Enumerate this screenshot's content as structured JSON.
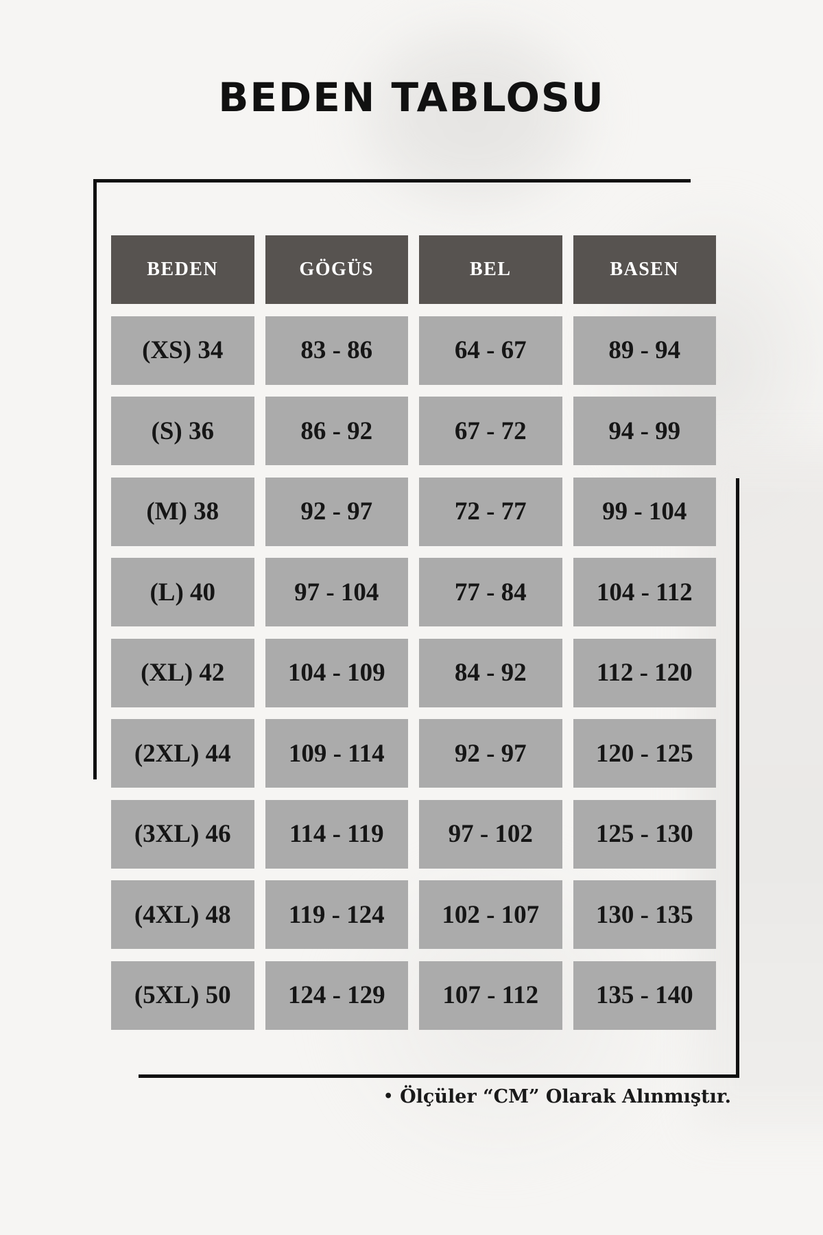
{
  "page": {
    "title": "BEDEN TABLOSU",
    "footnote_bullet": "•",
    "footnote": "Ölçüler “CM” Olarak Alınmıştır."
  },
  "colors": {
    "background": "#f6f5f3",
    "header_cell": "#575350",
    "header_text": "#ffffff",
    "data_cell": "#ababab",
    "data_text": "#161616",
    "frame_line": "#101010",
    "title_text": "#111111"
  },
  "chart_data": {
    "type": "table",
    "title": "BEDEN TABLOSU",
    "units": "cm",
    "columns": [
      "BEDEN",
      "GÖGÜS",
      "BEL",
      "BASEN"
    ],
    "rows": [
      [
        "(XS) 34",
        "83 - 86",
        "64 - 67",
        "89 - 94"
      ],
      [
        "(S) 36",
        "86 - 92",
        "67 - 72",
        "94 - 99"
      ],
      [
        "(M) 38",
        "92 - 97",
        "72 - 77",
        "99 - 104"
      ],
      [
        "(L) 40",
        "97 - 104",
        "77 - 84",
        "104 - 112"
      ],
      [
        "(XL) 42",
        "104 - 109",
        "84 - 92",
        "112 - 120"
      ],
      [
        "(2XL) 44",
        "109 - 114",
        "92 - 97",
        "120 - 125"
      ],
      [
        "(3XL) 46",
        "114 - 119",
        "97 - 102",
        "125 - 130"
      ],
      [
        "(4XL) 48",
        "119 - 124",
        "102 - 107",
        "130 - 135"
      ],
      [
        "(5XL) 50",
        "124 - 129",
        "107 - 112",
        "135 - 140"
      ]
    ],
    "note": "Ölçüler “CM” Olarak Alınmıştır."
  }
}
